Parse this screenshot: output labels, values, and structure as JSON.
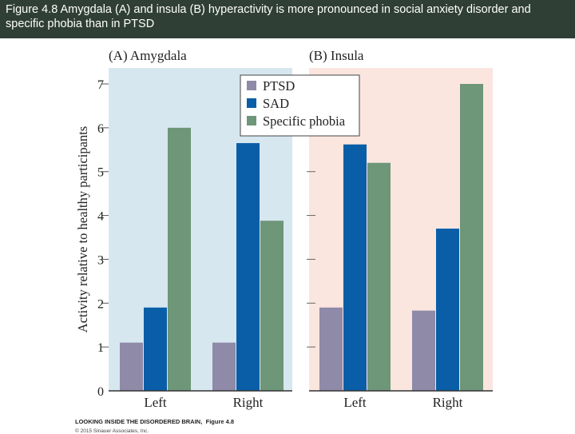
{
  "header": {
    "caption": "Figure 4.8 Amygdala (A) and insula (B) hyperactivity is more pronounced in social anxiety disorder and specific phobia than in PTSD"
  },
  "colors": {
    "header_bg": "#2f3f35",
    "ptsd": "#8e8aa8",
    "sad": "#0a5ea8",
    "specific_phobia": "#6e9678",
    "panel_a_bg": "#d6e7f0",
    "panel_b_bg": "#fbe5df"
  },
  "chart_data": {
    "type": "bar",
    "ylabel": "Activity relative to healthy participants",
    "ylim": [
      0,
      7
    ],
    "yticks": [
      "0",
      "1",
      "2",
      "3",
      "4",
      "5",
      "6",
      "7"
    ],
    "legend": {
      "placement": "top-center",
      "entries": [
        "PTSD",
        "SAD",
        "Specific phobia"
      ]
    },
    "panels": [
      {
        "title": "(A) Amygdala",
        "categories": [
          "Left",
          "Right"
        ],
        "series": [
          {
            "name": "PTSD",
            "values": [
              1.1,
              1.1
            ]
          },
          {
            "name": "SAD",
            "values": [
              1.9,
              5.65
            ]
          },
          {
            "name": "Specific phobia",
            "values": [
              6.0,
              3.88
            ]
          }
        ]
      },
      {
        "title": "(B) Insula",
        "categories": [
          "Left",
          "Right"
        ],
        "series": [
          {
            "name": "PTSD",
            "values": [
              1.9,
              1.83
            ]
          },
          {
            "name": "SAD",
            "values": [
              5.62,
              3.7
            ]
          },
          {
            "name": "Specific phobia",
            "values": [
              5.2,
              7.0
            ]
          }
        ]
      }
    ]
  },
  "credit": {
    "book": "LOOKING INSIDE THE DISORDERED BRAIN,",
    "figure": "Figure 4.8",
    "copyright": "© 2015 Sinauer Associates, Inc."
  }
}
